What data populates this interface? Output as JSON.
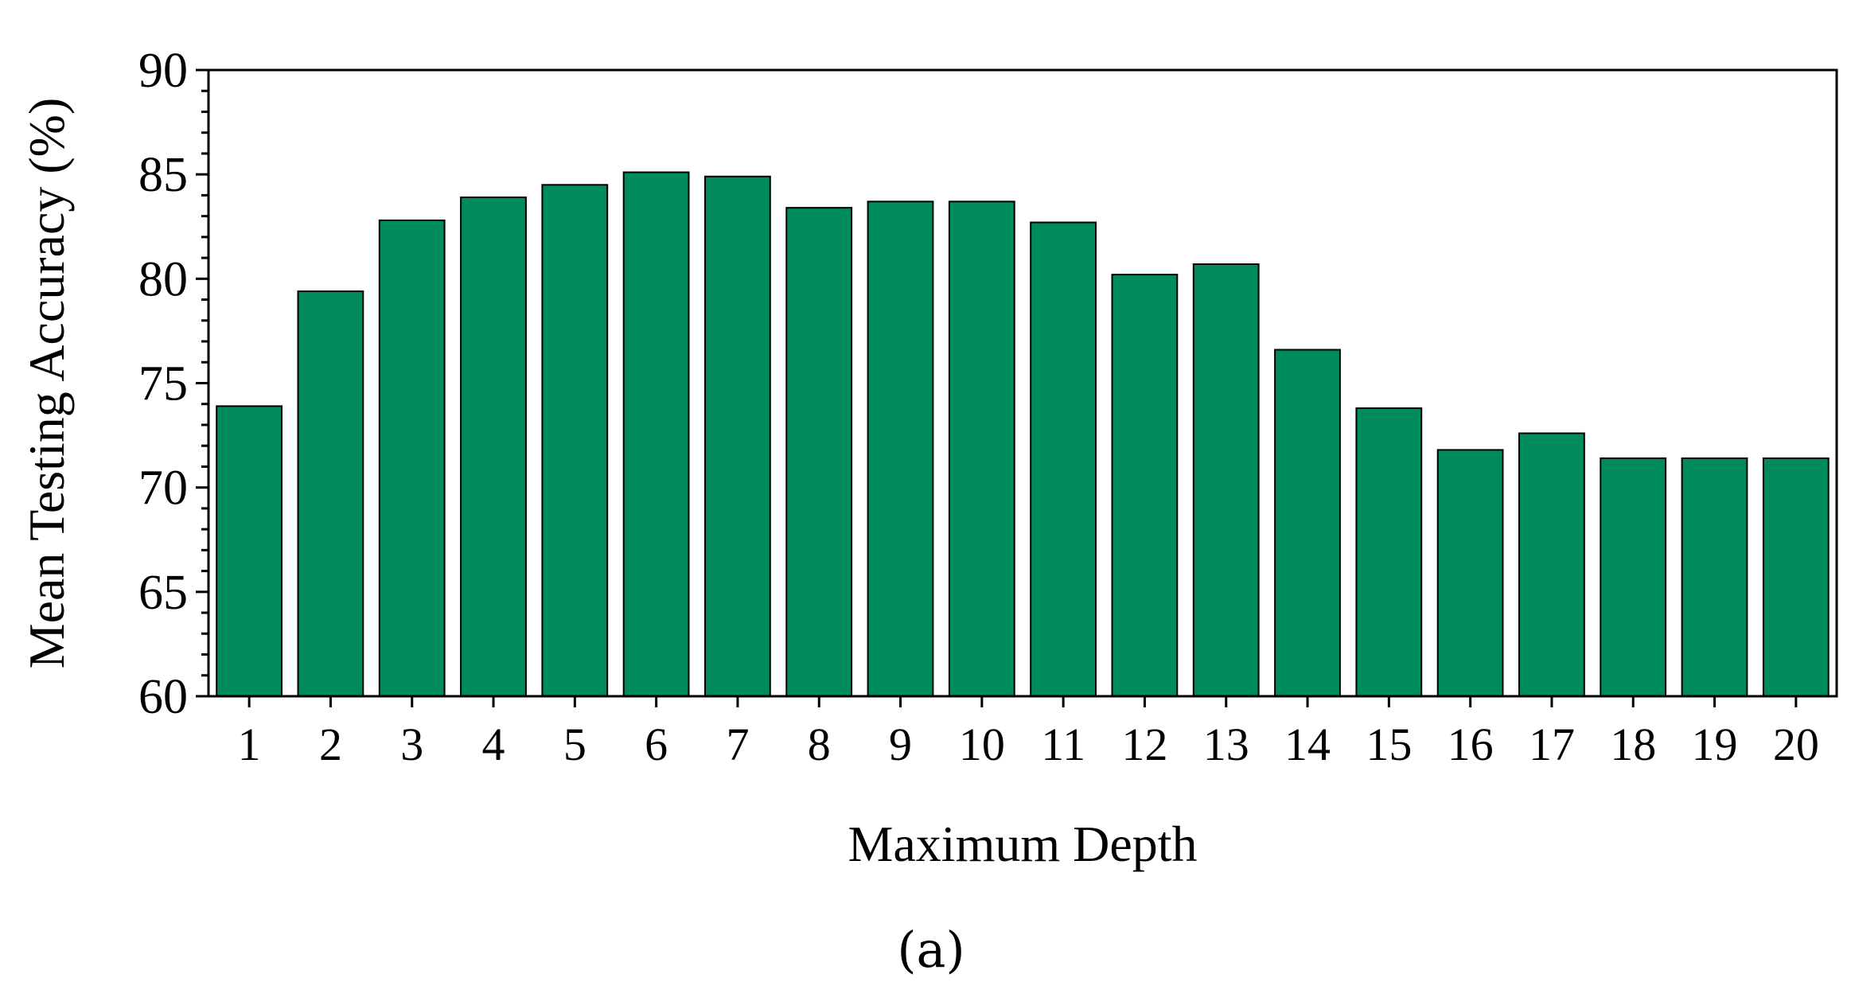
{
  "chart_data": {
    "type": "bar",
    "categories": [
      "1",
      "2",
      "3",
      "4",
      "5",
      "6",
      "7",
      "8",
      "9",
      "10",
      "11",
      "12",
      "13",
      "14",
      "15",
      "16",
      "17",
      "18",
      "19",
      "20"
    ],
    "values": [
      73.9,
      79.4,
      82.8,
      83.9,
      84.5,
      85.1,
      84.9,
      83.4,
      83.7,
      83.7,
      82.7,
      80.2,
      80.7,
      76.6,
      73.8,
      71.8,
      72.6,
      71.4,
      71.4,
      71.4
    ],
    "xlabel": "Maximum Depth",
    "ylabel": "Mean Testing Accuracy (%)",
    "ylim": [
      60,
      90
    ],
    "yticks": [
      "60",
      "65",
      "70",
      "75",
      "80",
      "85",
      "90"
    ],
    "bar_color": "#008c5a",
    "grid": false,
    "panel_label": "(a)"
  }
}
